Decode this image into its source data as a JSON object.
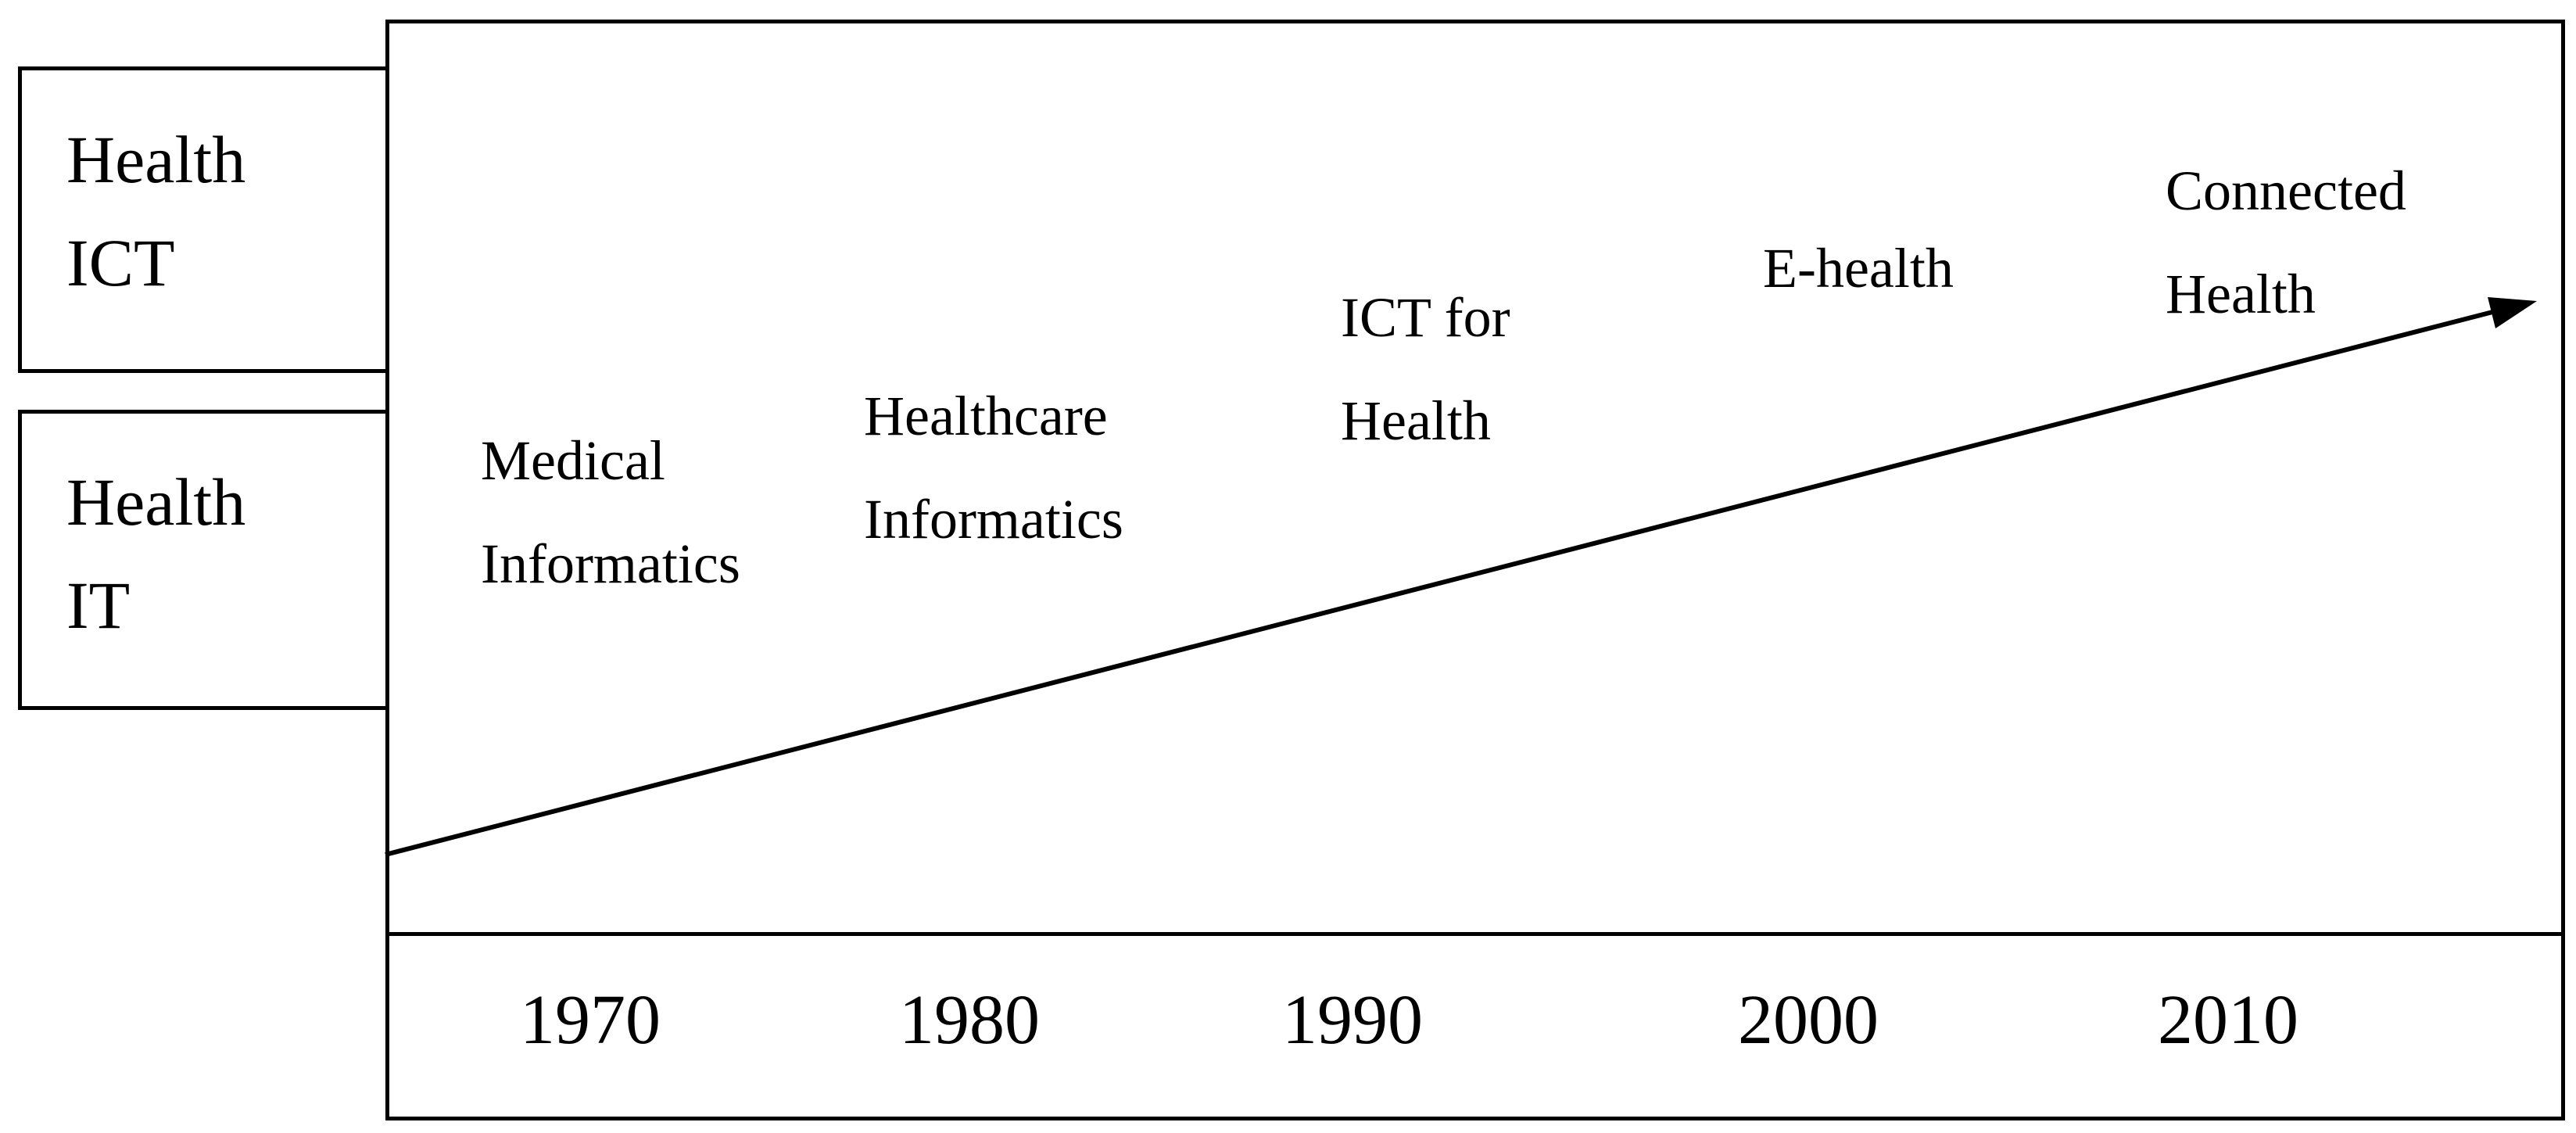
{
  "side_labels": {
    "health_ict": "Health\nICT",
    "health_it": "Health\nIT"
  },
  "eras": [
    {
      "label": "Medical\nInformatics"
    },
    {
      "label": "Healthcare\nInformatics"
    },
    {
      "label": "ICT  for\nHealth"
    },
    {
      "label": "E-health"
    },
    {
      "label": "Connected\nHealth"
    }
  ],
  "years": [
    "1970",
    "1980",
    "1990",
    "2000",
    "2010"
  ]
}
